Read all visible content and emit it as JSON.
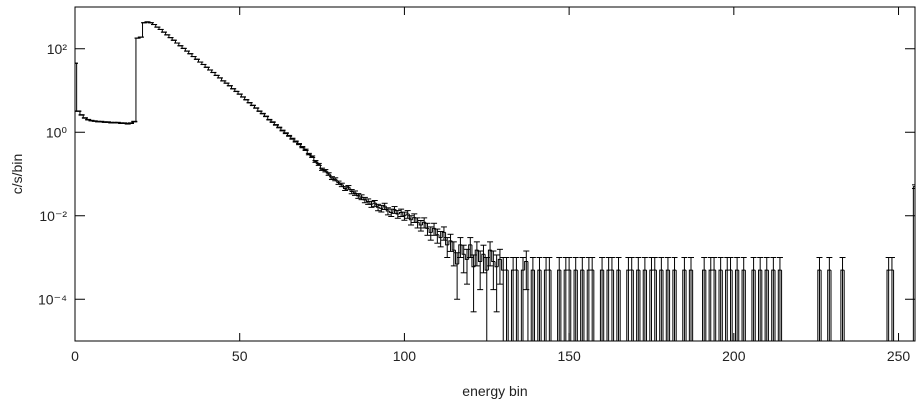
{
  "chart_data": {
    "type": "histogram-step",
    "xlabel": "energy bin",
    "ylabel": "c/s/bin",
    "log_y": true,
    "color": "#000000",
    "xlim": [
      0,
      255
    ],
    "ylim": [
      1e-05,
      1000
    ],
    "xticks": [
      0,
      50,
      100,
      150,
      200,
      250
    ],
    "yticks": [
      {
        "value": 100,
        "label": "10²"
      },
      {
        "value": 1,
        "label": "10⁰"
      },
      {
        "value": 0.01,
        "label": "10⁻²"
      },
      {
        "value": 0.0001,
        "label": "10⁻⁴"
      }
    ],
    "values": [
      45,
      3.2,
      2.6,
      2.2,
      2.0,
      1.9,
      1.85,
      1.8,
      1.8,
      1.75,
      1.75,
      1.7,
      1.7,
      1.7,
      1.65,
      1.65,
      1.6,
      1.65,
      1.8,
      180,
      190,
      420,
      440,
      420,
      380,
      330,
      290,
      250,
      215,
      185,
      160,
      137,
      118,
      102,
      88,
      76,
      65,
      56,
      48,
      42,
      36,
      31,
      27,
      23,
      20,
      17,
      15,
      13,
      11,
      9.5,
      8.2,
      7.0,
      6.0,
      5.1,
      4.4,
      3.8,
      3.2,
      2.8,
      2.4,
      2.0,
      1.75,
      1.5,
      1.3,
      1.1,
      0.95,
      0.82,
      0.7,
      0.6,
      0.52,
      0.44,
      0.38,
      0.3,
      0.26,
      0.2,
      0.17,
      0.13,
      0.12,
      0.1,
      0.08,
      0.075,
      0.062,
      0.055,
      0.045,
      0.048,
      0.038,
      0.035,
      0.03,
      0.028,
      0.024,
      0.022,
      0.019,
      0.02,
      0.016,
      0.015,
      0.017,
      0.013,
      0.012,
      0.014,
      0.011,
      0.012,
      0.01,
      0.011,
      0.008,
      0.009,
      0.007,
      0.006,
      0.007,
      0.005,
      0.004,
      0.005,
      0.0035,
      0.003,
      0.004,
      0.002,
      0.0025,
      0.0015,
      0.0007,
      0.002,
      0.0012,
      0.0009,
      0.002,
      0.0006,
      0.0015,
      0.0008,
      0.0012,
      0.0005,
      0.0015,
      0.0008,
      0.0006,
      0.0009,
      0.0005,
      0.0005,
      0,
      0.0005,
      0.0005,
      0,
      0.0005,
      0.0008,
      0,
      0.0005,
      0,
      0.0005,
      0,
      0.0005,
      0.0005,
      0,
      0,
      0.0005,
      0,
      0.0005,
      0.0005,
      0,
      0.0005,
      0,
      0.0005,
      0,
      0.0005,
      0.0005,
      0,
      0,
      0.0005,
      0,
      0.0005,
      0.0005,
      0,
      0.0005,
      0,
      0,
      0.0005,
      0.0005,
      0,
      0.0005,
      0,
      0.0005,
      0,
      0.0005,
      0.0005,
      0,
      0.0005,
      0,
      0.0005,
      0,
      0.0005,
      0,
      0,
      0.0005,
      0,
      0.0005,
      0,
      0,
      0,
      0.0005,
      0,
      0.0005,
      0.0005,
      0,
      0.0005,
      0,
      0.0005,
      0.0005,
      0,
      0.0005,
      0,
      0.0005,
      0,
      0,
      0.0005,
      0,
      0.0005,
      0,
      0.0005,
      0,
      0.0005,
      0,
      0.0005,
      0,
      0,
      0,
      0,
      0,
      0,
      0,
      0,
      0,
      0,
      0,
      0.0005,
      0,
      0,
      0.0005,
      0,
      0,
      0,
      0.0005,
      0,
      0,
      0,
      0,
      0,
      0,
      0,
      0,
      0,
      0,
      0,
      0,
      0,
      0.0005,
      0.0005,
      0,
      0,
      0,
      0,
      0,
      0,
      0.05
    ],
    "errors": [
      0.15,
      0.04,
      0.036,
      0.033,
      0.032,
      0.031,
      0.03,
      0.03,
      0.03,
      0.03,
      0.03,
      0.03,
      0.03,
      0.03,
      0.03,
      0.03,
      0.03,
      0.03,
      0.03,
      0.3,
      0.31,
      0.46,
      0.47,
      0.46,
      0.44,
      0.41,
      0.38,
      0.35,
      0.33,
      0.3,
      0.28,
      0.26,
      0.24,
      0.23,
      0.21,
      0.19,
      0.18,
      0.17,
      0.15,
      0.14,
      0.13,
      0.12,
      0.12,
      0.11,
      0.1,
      0.092,
      0.087,
      0.081,
      0.074,
      0.069,
      0.064,
      0.059,
      0.055,
      0.05,
      0.047,
      0.044,
      0.04,
      0.037,
      0.035,
      0.032,
      0.03,
      0.027,
      0.025,
      0.023,
      0.022,
      0.02,
      0.019,
      0.017,
      0.016,
      0.015,
      0.014,
      0.012,
      0.011,
      0.01,
      0.0092,
      0.0081,
      0.0077,
      0.0071,
      0.0063,
      0.0061,
      0.0056,
      0.0052,
      0.0047,
      0.0049,
      0.0044,
      0.0042,
      0.0039,
      0.0037,
      0.0035,
      0.0033,
      0.0031,
      0.0032,
      0.0028,
      0.0027,
      0.0029,
      0.0025,
      0.0024,
      0.0026,
      0.0023,
      0.0024,
      0.0022,
      0.0023,
      0.002,
      0.0021,
      0.0019,
      0.0017,
      0.0019,
      0.0016,
      0.0014,
      0.0016,
      0.0013,
      0.0012,
      0.0014,
      0.001,
      0.0011,
      0.00087,
      0.0006,
      0.001,
      0.00077,
      0.00067,
      0.001,
      0.00055,
      0.00087,
      0.00063,
      0.00077,
      0.0005,
      0.00087,
      0.00063,
      0.00055,
      0.00067,
      0.0005,
      0.0005,
      0,
      0.0005,
      0.0005,
      0,
      0.0005,
      0.00063,
      0,
      0.0005,
      0,
      0.0005,
      0,
      0.0005,
      0.0005,
      0,
      0,
      0.0005,
      0,
      0.0005,
      0.0005,
      0,
      0.0005,
      0,
      0.0005,
      0,
      0.0005,
      0.0005,
      0,
      0,
      0.0005,
      0,
      0.0005,
      0.0005,
      0,
      0.0005,
      0,
      0,
      0.0005,
      0.0005,
      0,
      0.0005,
      0,
      0.0005,
      0,
      0.0005,
      0.0005,
      0,
      0.0005,
      0,
      0.0005,
      0,
      0.0005,
      0,
      0,
      0.0005,
      0,
      0.0005,
      0,
      0,
      0,
      0.0005,
      0,
      0.0005,
      0.0005,
      0,
      0.0005,
      0,
      0.0005,
      0.0005,
      0,
      0.0005,
      0,
      0.0005,
      0,
      0,
      0.0005,
      0,
      0.0005,
      0,
      0.0005,
      0,
      0.0005,
      0,
      0.0005,
      0,
      0,
      0,
      0,
      0,
      0,
      0,
      0,
      0,
      0,
      0,
      0.0005,
      0,
      0,
      0.0005,
      0,
      0,
      0,
      0.0005,
      0,
      0,
      0,
      0,
      0,
      0,
      0,
      0,
      0,
      0,
      0,
      0,
      0,
      0.0005,
      0.0005,
      0,
      0,
      0,
      0,
      0,
      0,
      0.005
    ]
  }
}
